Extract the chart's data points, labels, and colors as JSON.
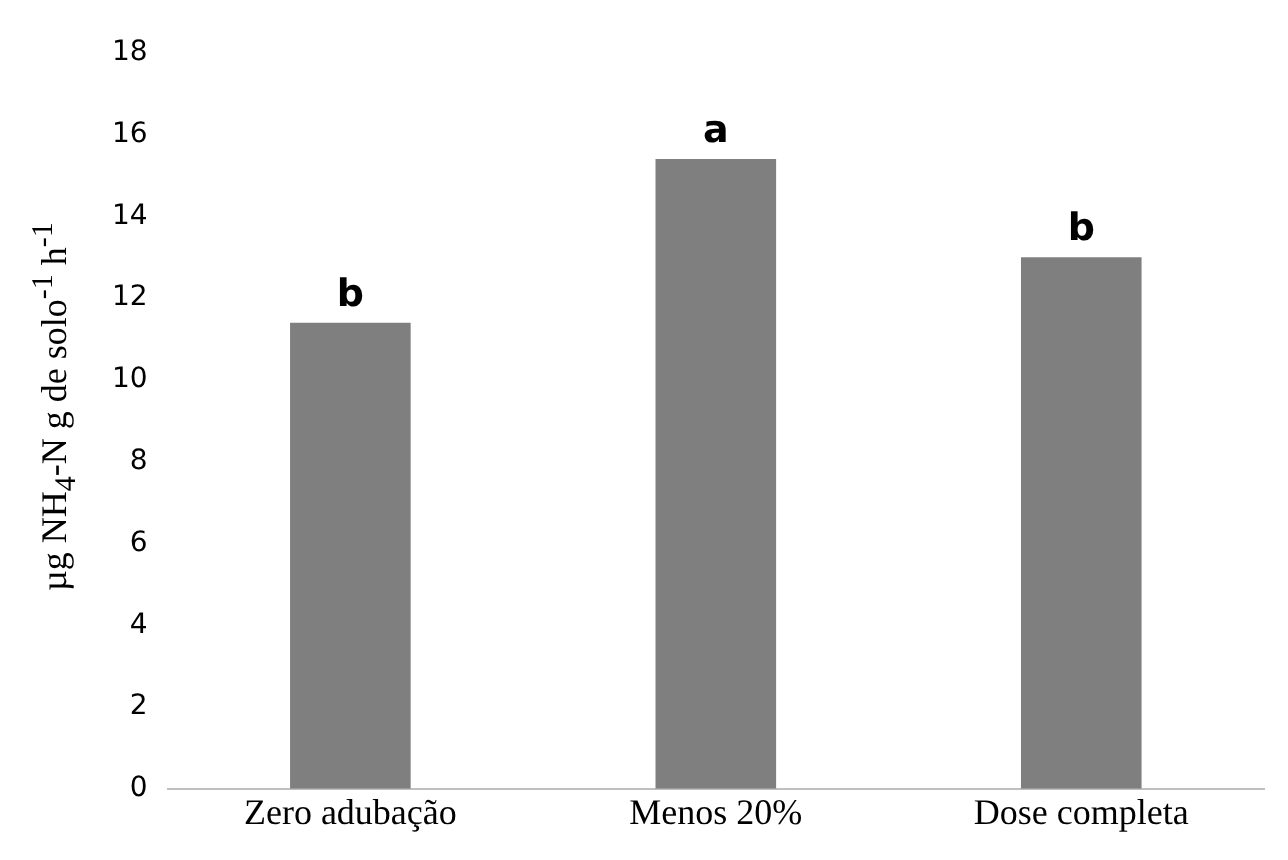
{
  "chart_data": {
    "type": "bar",
    "ylabel": "µg NH$_{4}$-N g de solo$^{-1}$ h$^{-1}$",
    "categories": [
      "Zero adubação",
      "Menos 20%",
      "Dose completa"
    ],
    "values": [
      11.4,
      15.4,
      13.0
    ],
    "color": "#7f7f7f",
    "ylim": [
      0,
      18
    ],
    "yticks": [
      0,
      2,
      4,
      6,
      8,
      10,
      12,
      14,
      16,
      18
    ],
    "grid": false,
    "legend": false,
    "annotations": [
      {
        "text": "b",
        "x": "Zero adubação",
        "y": 11.4
      },
      {
        "text": "a",
        "x": "Menos 20%",
        "y": 15.4
      },
      {
        "text": "b",
        "x": "Dose completa",
        "y": 13.0
      }
    ]
  }
}
